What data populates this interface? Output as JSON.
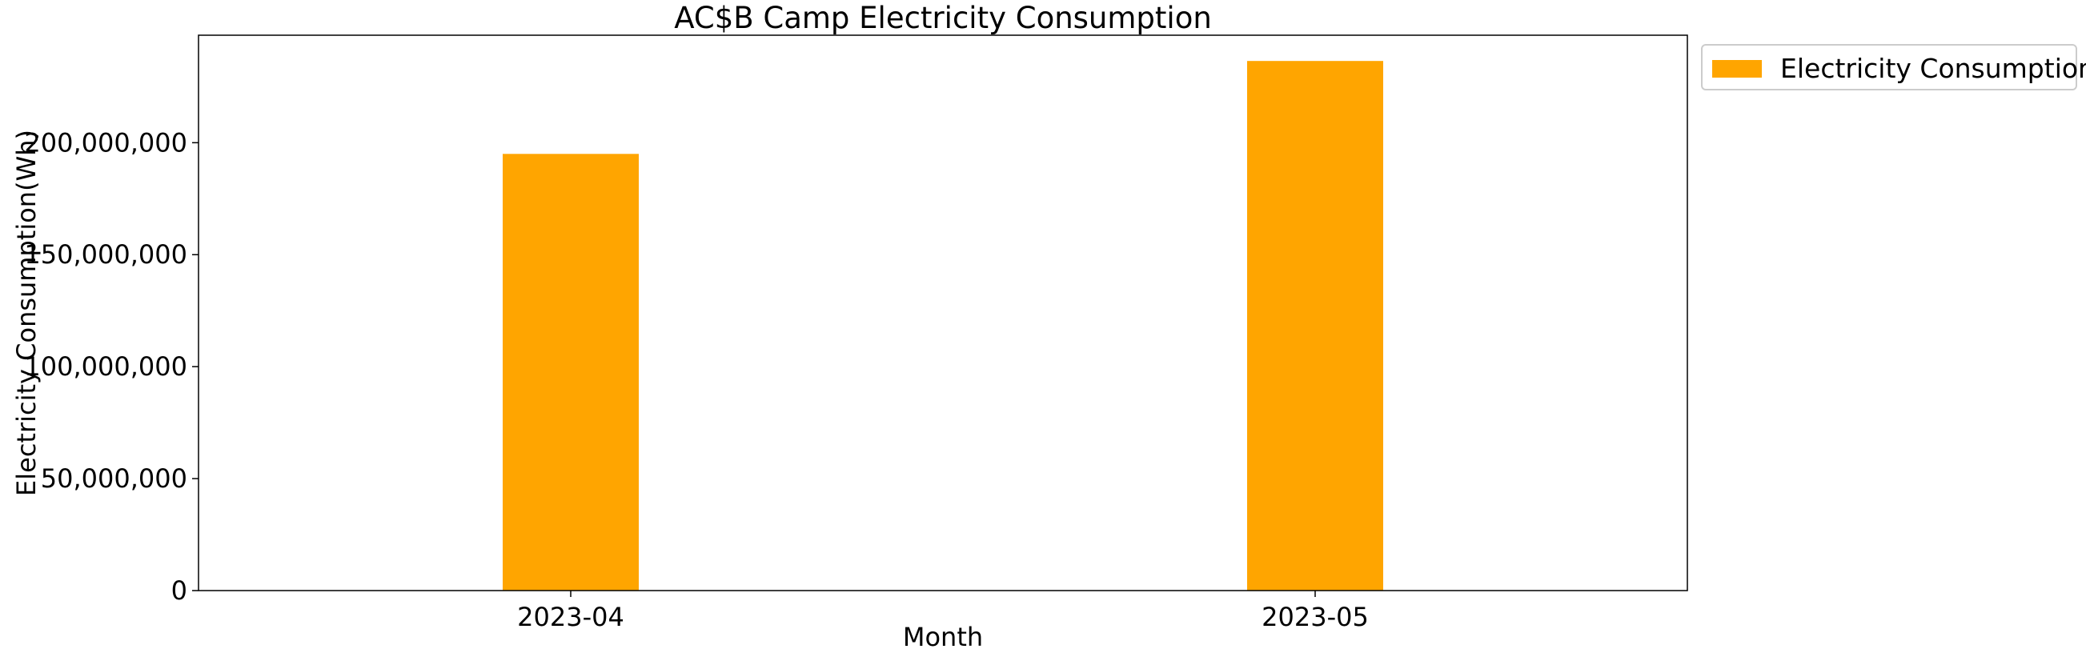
{
  "chart_data": {
    "type": "bar",
    "title": "AC$B Camp Electricity Consumption",
    "xlabel": "Month",
    "ylabel": "Electricity Consumption(Wh)",
    "categories": [
      "2023-04",
      "2023-05"
    ],
    "series": [
      {
        "name": "Electricity Consumption",
        "values": [
          195000000,
          236500000
        ],
        "color": "#FFA500"
      }
    ],
    "ylim": [
      0,
      248000000
    ],
    "yticks": [
      0,
      50000000,
      100000000,
      150000000,
      200000000
    ],
    "ytick_labels": [
      "0",
      "50,000,000",
      "100,000,000",
      "150,000,000",
      "200,000,000"
    ],
    "grid": false,
    "legend_position": "outside-top-right"
  }
}
